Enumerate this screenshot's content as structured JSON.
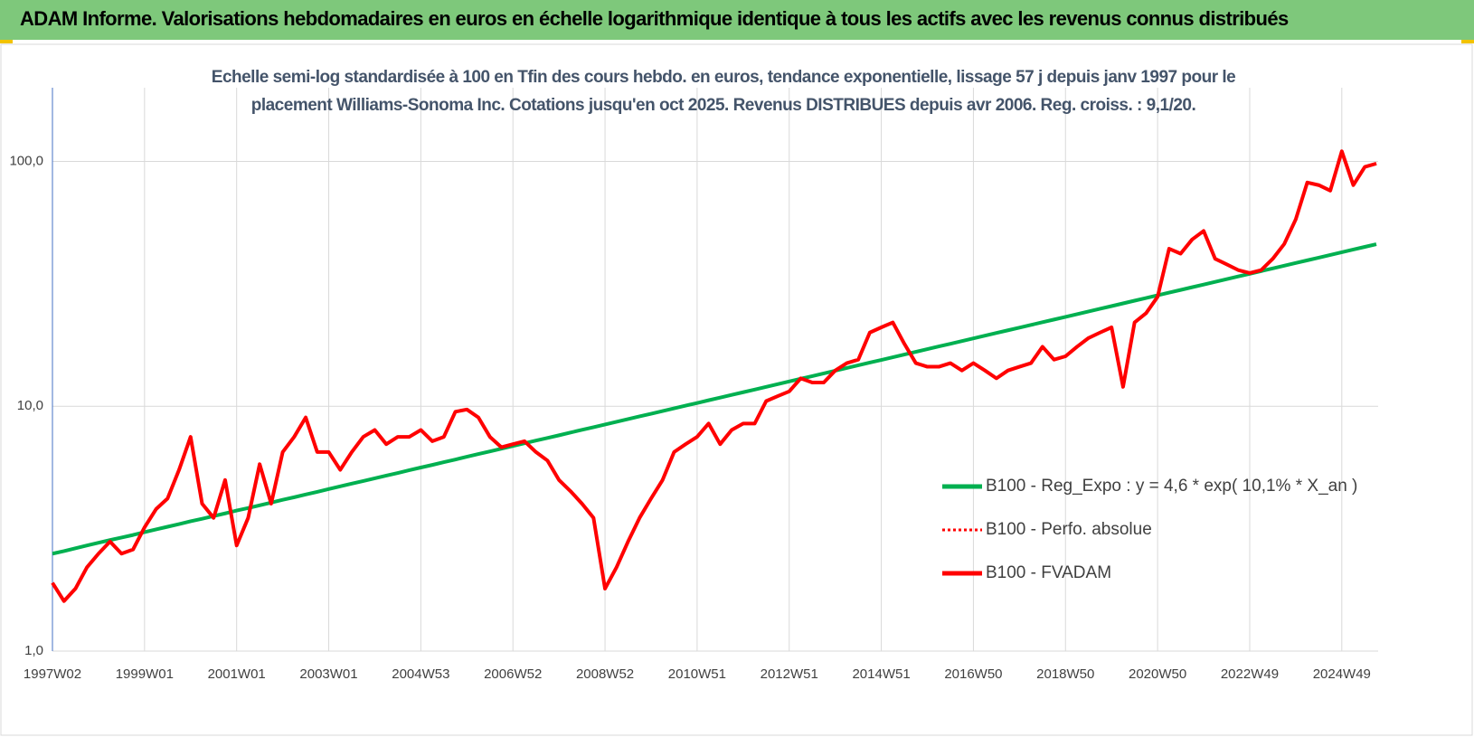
{
  "header": {
    "title": "ADAM Informe. Valorisations hebdomadaires en euros en échelle logarithmique identique à tous les actifs avec les revenus connus distribués"
  },
  "chart_data": {
    "type": "line",
    "subtitle": "Echelle semi-log standardisée à 100 en Tfin des cours hebdo. en euros, tendance exponentielle, lissage 57 j depuis janv 1997 pour le placement Williams-Sonoma Inc. Cotations jusqu'en oct 2025. Revenus DISTRIBUES depuis avr 2006. Reg. croiss. : 9,1/20.",
    "log_scale": true,
    "grid": true,
    "legend": "right",
    "ylim": [
      1,
      200
    ],
    "yticks": [
      {
        "value": 1,
        "label": "1,0"
      },
      {
        "value": 10,
        "label": "10,0"
      },
      {
        "value": 100,
        "label": "100,0"
      }
    ],
    "categories": [
      "1997W02",
      null,
      null,
      null,
      null,
      null,
      null,
      null,
      "1999W01",
      null,
      null,
      null,
      null,
      null,
      null,
      null,
      "2001W01",
      null,
      null,
      null,
      null,
      null,
      null,
      null,
      "2003W01",
      null,
      null,
      null,
      null,
      null,
      null,
      null,
      "2004W53",
      null,
      null,
      null,
      null,
      null,
      null,
      null,
      "2006W52",
      null,
      null,
      null,
      null,
      null,
      null,
      null,
      "2008W52",
      null,
      null,
      null,
      null,
      null,
      null,
      null,
      "2010W51",
      null,
      null,
      null,
      null,
      null,
      null,
      null,
      "2012W51",
      null,
      null,
      null,
      null,
      null,
      null,
      null,
      "2014W51",
      null,
      null,
      null,
      null,
      null,
      null,
      null,
      "2016W50",
      null,
      null,
      null,
      null,
      null,
      null,
      null,
      "2018W50",
      null,
      null,
      null,
      null,
      null,
      null,
      null,
      "2020W50",
      null,
      null,
      null,
      null,
      null,
      null,
      null,
      "2022W49",
      null,
      null,
      null,
      null,
      null,
      null,
      null,
      "2024W49",
      null,
      null,
      null
    ],
    "series": [
      {
        "name": "B100 - Reg_Expo : y = 4,6 * exp( 10,1% *  X_an )",
        "color": "#00b050",
        "dash": "solid",
        "values": [
          2.5,
          2.56,
          2.63,
          2.7,
          2.77,
          2.84,
          2.91,
          2.98,
          3.06,
          3.14,
          3.22,
          3.3,
          3.39,
          3.47,
          3.56,
          3.65,
          3.75,
          3.84,
          3.94,
          4.04,
          4.15,
          4.25,
          4.36,
          4.47,
          4.59,
          4.71,
          4.83,
          4.95,
          5.08,
          5.21,
          5.34,
          5.48,
          5.62,
          5.76,
          5.91,
          6.06,
          6.22,
          6.38,
          6.54,
          6.71,
          6.88,
          7.06,
          7.24,
          7.42,
          7.61,
          7.81,
          8.01,
          8.21,
          8.42,
          8.64,
          8.86,
          9.09,
          9.32,
          9.56,
          9.81,
          10.06,
          10.31,
          10.58,
          10.85,
          11.13,
          11.41,
          11.7,
          12.0,
          12.31,
          12.63,
          12.95,
          13.28,
          13.62,
          13.97,
          14.33,
          14.7,
          15.08,
          15.46,
          15.86,
          16.27,
          16.68,
          17.11,
          17.55,
          18.0,
          18.46,
          18.93,
          19.42,
          19.92,
          20.43,
          20.95,
          21.49,
          22.04,
          22.6,
          23.18,
          23.78,
          24.39,
          25.01,
          25.65,
          26.31,
          26.99,
          27.68,
          28.39,
          29.12,
          29.86,
          30.63,
          31.41,
          32.22,
          33.04,
          33.89,
          34.76,
          35.65,
          36.57,
          37.5,
          38.47,
          39.45,
          40.46,
          41.5,
          42.56,
          43.65,
          44.77,
          45.92
        ]
      },
      {
        "name": "B100 - Perfo. absolue",
        "color": "#ff0000",
        "dash": "dotted",
        "values": [
          1.9,
          1.6,
          1.8,
          2.2,
          2.5,
          2.8,
          2.5,
          2.6,
          3.2,
          3.8,
          4.2,
          5.5,
          7.5,
          4.0,
          3.5,
          5.0,
          2.7,
          3.5,
          5.8,
          4.0,
          6.5,
          7.5,
          9.0,
          6.5,
          6.5,
          5.5,
          6.5,
          7.5,
          8.0,
          7.0,
          7.5,
          7.5,
          8.0,
          7.2,
          7.5,
          9.5,
          9.7,
          9.0,
          7.5,
          6.8,
          7.0,
          7.2,
          6.5,
          6.0,
          5.0,
          4.5,
          4.0,
          3.5,
          1.8,
          2.2,
          2.8,
          3.5,
          4.2,
          5.0,
          6.5,
          7.0,
          7.5,
          8.5,
          7.0,
          8.0,
          8.5,
          8.5,
          10.5,
          11.0,
          11.5,
          13.0,
          12.5,
          12.5,
          14.0,
          15.0,
          15.5,
          20.0,
          21.0,
          22.0,
          18.0,
          15.0,
          14.5,
          14.5,
          15.0,
          14.0,
          15.0,
          14.0,
          13.0,
          14.0,
          14.5,
          15.0,
          17.5,
          15.5,
          16.0,
          17.5,
          19.0,
          20.0,
          21.0,
          12.0,
          22.0,
          24.0,
          28.0,
          44.0,
          42.0,
          48.0,
          52.0,
          40.0,
          38.0,
          36.0,
          35.0,
          36.0,
          40.0,
          46.0,
          58.0,
          82.0,
          80.0,
          76.0,
          110.0,
          80.0,
          95.0,
          98.0
        ]
      },
      {
        "name": "B100 - FVADAM",
        "color": "#ff0000",
        "dash": "solid",
        "values": [
          1.9,
          1.6,
          1.8,
          2.2,
          2.5,
          2.8,
          2.5,
          2.6,
          3.2,
          3.8,
          4.2,
          5.5,
          7.5,
          4.0,
          3.5,
          5.0,
          2.7,
          3.5,
          5.8,
          4.0,
          6.5,
          7.5,
          9.0,
          6.5,
          6.5,
          5.5,
          6.5,
          7.5,
          8.0,
          7.0,
          7.5,
          7.5,
          8.0,
          7.2,
          7.5,
          9.5,
          9.7,
          9.0,
          7.5,
          6.8,
          7.0,
          7.2,
          6.5,
          6.0,
          5.0,
          4.5,
          4.0,
          3.5,
          1.8,
          2.2,
          2.8,
          3.5,
          4.2,
          5.0,
          6.5,
          7.0,
          7.5,
          8.5,
          7.0,
          8.0,
          8.5,
          8.5,
          10.5,
          11.0,
          11.5,
          13.0,
          12.5,
          12.5,
          14.0,
          15.0,
          15.5,
          20.0,
          21.0,
          22.0,
          18.0,
          15.0,
          14.5,
          14.5,
          15.0,
          14.0,
          15.0,
          14.0,
          13.0,
          14.0,
          14.5,
          15.0,
          17.5,
          15.5,
          16.0,
          17.5,
          19.0,
          20.0,
          21.0,
          12.0,
          22.0,
          24.0,
          28.0,
          44.0,
          42.0,
          48.0,
          52.0,
          40.0,
          38.0,
          36.0,
          35.0,
          36.0,
          40.0,
          46.0,
          58.0,
          82.0,
          80.0,
          76.0,
          110.0,
          80.0,
          95.0,
          98.0
        ]
      }
    ]
  }
}
